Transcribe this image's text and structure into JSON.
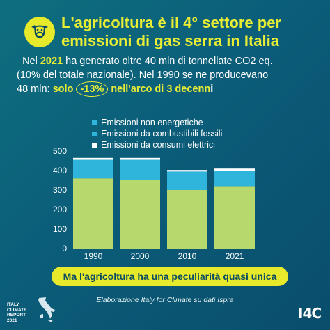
{
  "header": {
    "icon": "cow-icon",
    "title_line1": "L'agricoltura è il 4° settore per",
    "title_line2": "emissioni di gas serra in Italia"
  },
  "subtitle": {
    "p1": "Nel ",
    "year": "2021",
    "p2": " ha generato oltre ",
    "amount": "40 mln",
    "p3": " di tonnellate CO2 eq.",
    "line2": "(10% del totale nazionale). Nel 1990 se ne producevano",
    "p4": "48 mln: ",
    "p5": "solo ",
    "pct": "-13%",
    "p6": " nell'arco di 3 decenn",
    "p7": "i"
  },
  "chart_data": {
    "type": "bar",
    "stacked": true,
    "categories": [
      "1990",
      "2000",
      "2010",
      "2021"
    ],
    "series": [
      {
        "name": "Emissioni non energetiche",
        "color": "#b6d86d",
        "values": [
          360,
          350,
          300,
          320
        ]
      },
      {
        "name": "Emissioni da combustibili fossili",
        "color": "#2fb4dc",
        "values": [
          95,
          105,
          95,
          80
        ]
      },
      {
        "name": "Emissioni da consumi elettrici",
        "color": "#ffffff",
        "values": [
          10,
          10,
          8,
          10
        ]
      }
    ],
    "yticks": [
      0,
      100,
      200,
      300,
      400,
      500
    ],
    "ylim": [
      0,
      500
    ],
    "grid": false,
    "legend": "top"
  },
  "banner": "Ma l'agricoltura ha una peculiarità quasi unica",
  "source": "Elaborazione Italy for Climate su dati Ispra",
  "footer": {
    "report_lines": [
      "ITALY",
      "CLIMATE",
      "REPORT",
      "2021"
    ],
    "map_icon": "italy-map-icon",
    "logo": "I4C"
  }
}
